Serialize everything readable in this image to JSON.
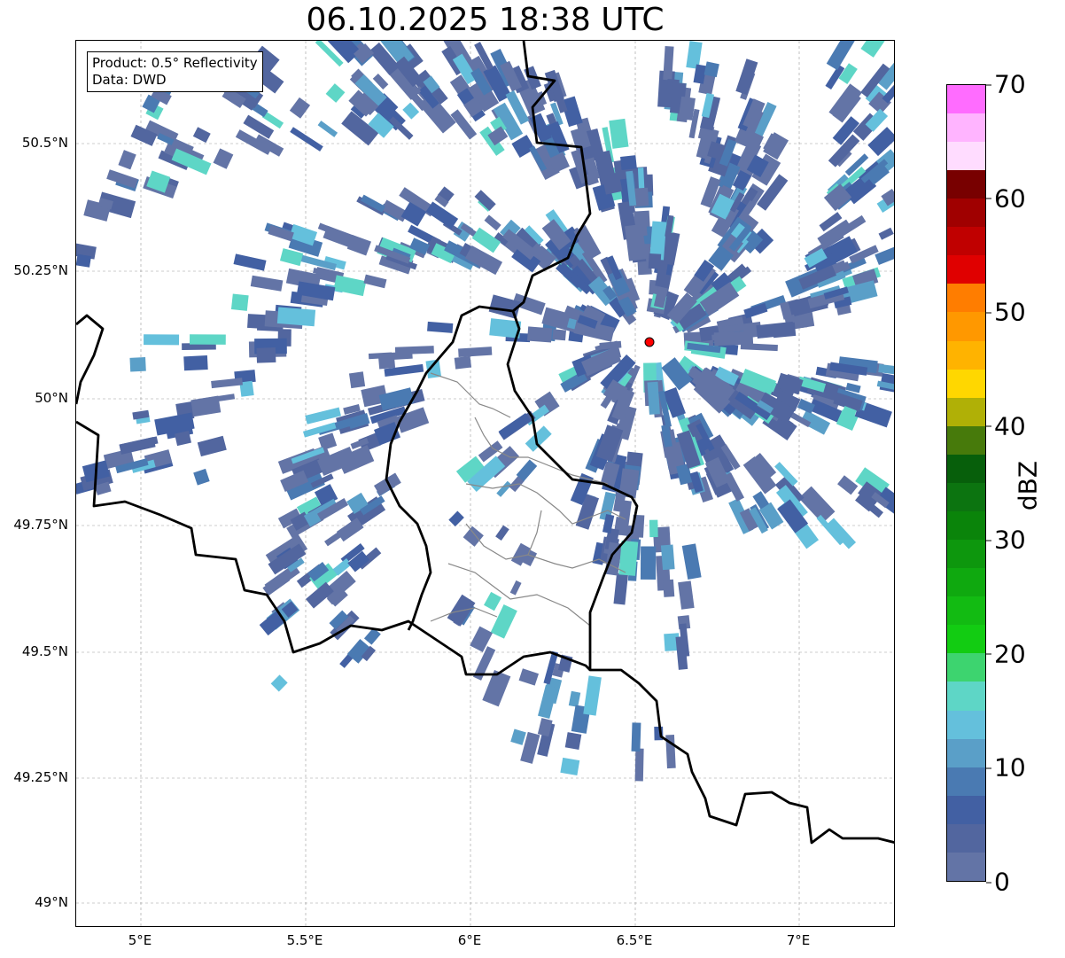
{
  "title": "06.10.2025 18:38 UTC",
  "info_box": {
    "line1": "Product: 0.5° Reflectivity",
    "line2": "Data: DWD"
  },
  "y_ticks": [
    "50.5°N",
    "50.25°N",
    "50°N",
    "49.75°N",
    "49.5°N",
    "49.25°N",
    "49°N"
  ],
  "x_ticks": [
    "5°E",
    "5.5°E",
    "6°E",
    "6.5°E",
    "7°E"
  ],
  "colorbar": {
    "label": "dBZ",
    "ticks": [
      "0",
      "10",
      "20",
      "30",
      "40",
      "50",
      "60",
      "70"
    ],
    "min": 0,
    "max": 70,
    "step": 2.5,
    "colors": [
      "#6374a6",
      "#52669f",
      "#4260a3",
      "#4a7ab2",
      "#5a9fc8",
      "#64c0dc",
      "#5ed6c6",
      "#3dd46f",
      "#12cc12",
      "#12bb12",
      "#0fa90f",
      "#0d970d",
      "#0a840a",
      "#0c7410",
      "#075f0b",
      "#477a0b",
      "#b0b006",
      "#ffd700",
      "#ffb300",
      "#ff9800",
      "#ff7d00",
      "#e00000",
      "#c00000",
      "#a00000",
      "#780000",
      "#ffdcff",
      "#ffb4ff",
      "#ff6cff",
      "#e935ef"
    ]
  },
  "radar_site_color": "#ff0000"
}
